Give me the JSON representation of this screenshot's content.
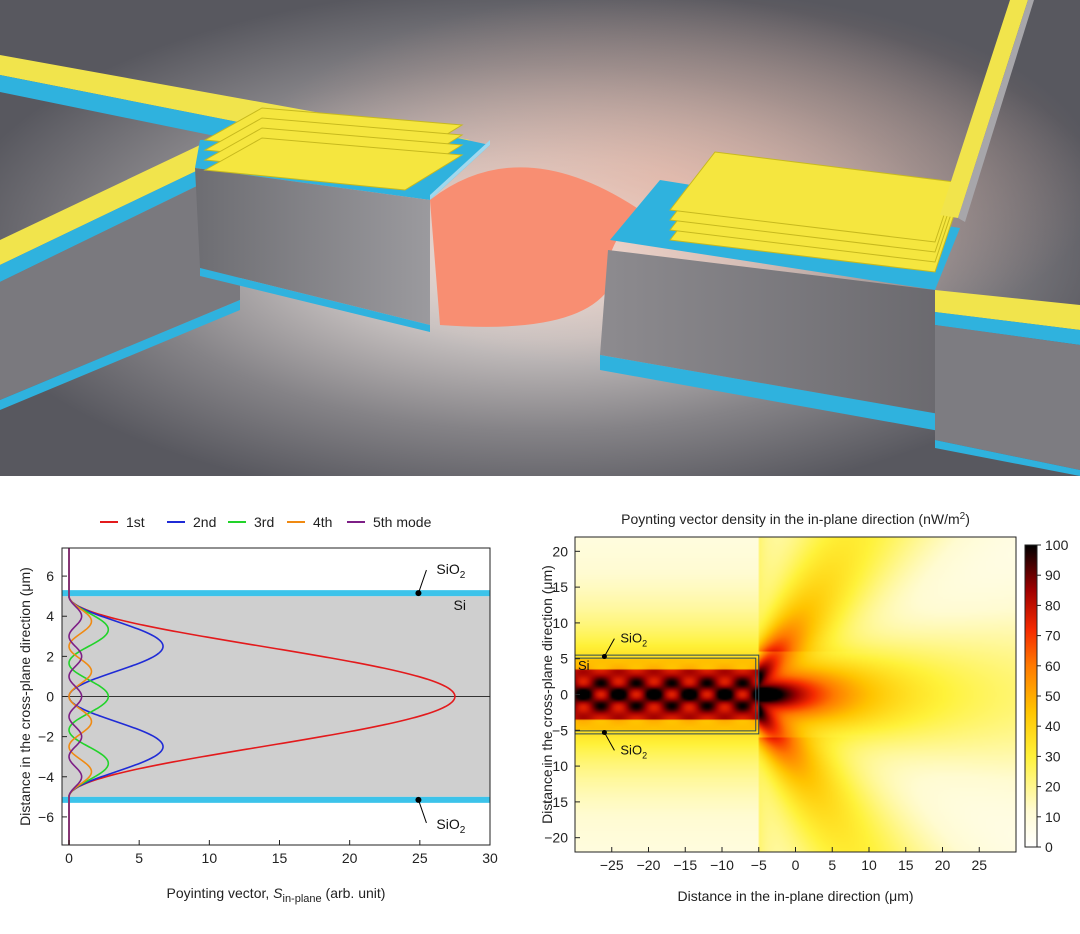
{
  "chart_data": [
    {
      "type": "line",
      "xlabel_prefix": "Poyinting vector, ",
      "xlabel_symbol": "S",
      "xlabel_sub": "in-plane",
      "xlabel_suffix": " (arb. unit)",
      "ylabel": "Distance in the cross-plane direction (μm)",
      "xlim": [
        -0.5,
        30
      ],
      "ylim": [
        -7.4,
        7.4
      ],
      "x_ticks": [
        0,
        5,
        10,
        15,
        20,
        25,
        30
      ],
      "y_ticks": [
        -6,
        -4,
        -2,
        0,
        2,
        4,
        6
      ],
      "grid": false,
      "legend_position": "top",
      "layer_labels": {
        "si": "Si",
        "sio2_top": "SiO",
        "sio2_bottom": "SiO",
        "sub": "2"
      },
      "layers": {
        "si": [
          -5.0,
          5.0
        ],
        "sio2_top": [
          5.0,
          5.3
        ],
        "sio2_bottom": [
          -5.3,
          -5.0
        ]
      },
      "series": [
        {
          "name": "1st",
          "color": "#e31a1c",
          "peaks": [
            [
              0,
              27.5
            ]
          ]
        },
        {
          "name": "2nd",
          "color": "#1f2bd6",
          "peaks": [
            [
              2.5,
              6.7
            ],
            [
              -2.5,
              6.7
            ]
          ]
        },
        {
          "name": "3rd",
          "color": "#22d32a",
          "peaks": [
            [
              3.3,
              2.8
            ],
            [
              0,
              2.8
            ],
            [
              -3.3,
              2.8
            ]
          ]
        },
        {
          "name": "4th",
          "color": "#f08a12",
          "peaks": [
            [
              3.75,
              1.6
            ],
            [
              1.25,
              1.6
            ],
            [
              -1.25,
              1.6
            ],
            [
              -3.75,
              1.6
            ]
          ]
        },
        {
          "name": "5th mode",
          "color": "#7d1f86",
          "peaks": [
            [
              4.0,
              0.9
            ],
            [
              2.0,
              0.9
            ],
            [
              0,
              0.9
            ],
            [
              -2.0,
              0.9
            ],
            [
              -4.0,
              0.9
            ]
          ]
        }
      ]
    },
    {
      "type": "heatmap",
      "title": "Poynting vector density in the in-plane direction (nW/m",
      "title_sup": "2",
      "title_end": ")",
      "xlabel": "Distance in the in-plane direction (μm)",
      "ylabel": "Distance in the cross-plane direction (μm)",
      "xlim": [
        -30,
        30
      ],
      "ylim": [
        -22,
        22
      ],
      "x_ticks": [
        -25,
        -20,
        -15,
        -10,
        -5,
        0,
        5,
        10,
        15,
        20,
        25
      ],
      "y_ticks": [
        -20,
        -15,
        -10,
        -5,
        0,
        5,
        10,
        15,
        20
      ],
      "colorbar_ticks": [
        0,
        10,
        20,
        30,
        40,
        50,
        60,
        70,
        80,
        90,
        100
      ],
      "colorbar_range": [
        0,
        100
      ],
      "waveguide": {
        "x_end": -5,
        "y": [
          -5.5,
          5.5
        ]
      },
      "labels": {
        "si": "Si",
        "sio2": "SiO",
        "sub": "2"
      }
    }
  ]
}
